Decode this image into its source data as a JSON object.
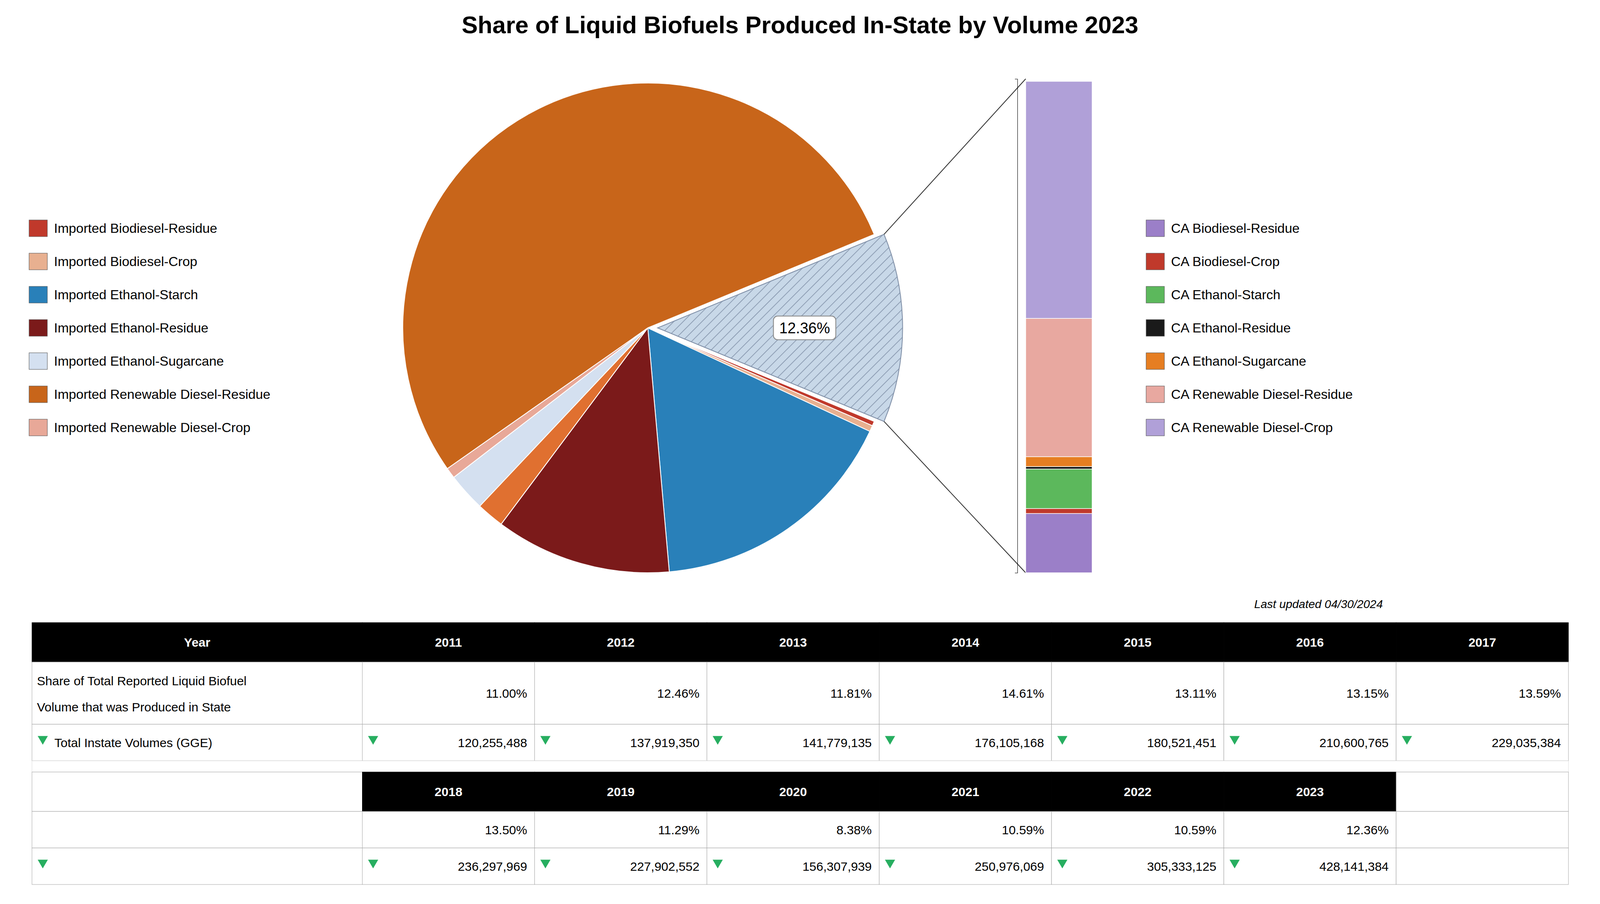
{
  "chart_data": [
    {
      "type": "pie",
      "title": "Share of Liquid Biofuels Produced In-State by Volume 2023",
      "values": [
        0.3,
        0.4,
        16.5,
        11.5,
        1.8,
        2.5,
        0.7,
        53.0,
        12.36
      ],
      "colors": [
        "#c0392b",
        "#e8b090",
        "#2980b9",
        "#7b1a1a",
        "#e07030",
        "#d4e0f0",
        "#e8a898",
        "#c8651a",
        "#c8d8e8"
      ],
      "annotation": "12.36%",
      "legend_entries": [
        {
          "name": "Imported Biodiesel-Residue",
          "color": "#c0392b"
        },
        {
          "name": "Imported Biodiesel-Crop",
          "color": "#e8b090"
        },
        {
          "name": "Imported Ethanol-Starch",
          "color": "#2980b9"
        },
        {
          "name": "Imported Ethanol-Residue",
          "color": "#7b1a1a"
        },
        {
          "name": "Imported Ethanol-Sugarcane",
          "color": "#d4e0f0"
        },
        {
          "name": "Imported Renewable Diesel-Residue",
          "color": "#c8651a"
        },
        {
          "name": "Imported Renewable Diesel-Crop",
          "color": "#e8a898"
        }
      ],
      "footnote": "Last updated 04/30/2024"
    },
    {
      "type": "bar",
      "stacked": true,
      "categories": [
        null
      ],
      "series": [
        {
          "name": "CA Biodiesel-Residue",
          "color": "#9b7fc8",
          "values": [
            12
          ]
        },
        {
          "name": "CA Biodiesel-Crop",
          "color": "#c0392b",
          "values": [
            1
          ]
        },
        {
          "name": "CA Ethanol-Starch",
          "color": "#5cb85c",
          "values": [
            8
          ]
        },
        {
          "name": "CA Ethanol-Residue",
          "color": "#1a1a1a",
          "values": [
            0.5
          ]
        },
        {
          "name": "CA Ethanol-Sugarcane",
          "color": "#e67e22",
          "values": [
            2
          ]
        },
        {
          "name": "CA Renewable Diesel-Residue",
          "color": "#e8a8a0",
          "values": [
            28
          ]
        },
        {
          "name": "CA Renewable Diesel-Crop",
          "color": "#b0a0d8",
          "values": [
            48
          ]
        }
      ],
      "ylim": [
        0,
        100
      ],
      "yticks": [
        0,
        100
      ],
      "tick_labels": false
    },
    {
      "type": "table",
      "columns": [
        "Year",
        "2011",
        "2012",
        "2013",
        "2014",
        "2015",
        "2016",
        "2017"
      ],
      "rows": [
        {
          "label": [
            "Share of Total Reported Liquid Biofuel",
            "Volume that was Produced in State"
          ],
          "values": [
            "11.00%",
            "12.46%",
            "11.81%",
            "14.61%",
            "13.11%",
            "13.15%",
            "13.59%"
          ]
        },
        {
          "label": "Total Instate Volumes (GGE)",
          "values": [
            "120,255,488",
            "137,919,350",
            "141,779,135",
            "176,105,168",
            "180,521,451",
            "210,600,765",
            "229,035,384"
          ],
          "marker": "triangle-down",
          "color": "#27ae60"
        }
      ]
    },
    {
      "type": "table",
      "columns": [
        "2018",
        "2019",
        "2020",
        "2021",
        "2022",
        "2023"
      ],
      "rows": [
        {
          "values": [
            "13.50%",
            "11.29%",
            "8.38%",
            "10.59%",
            "10.59%",
            "12.36%"
          ]
        },
        {
          "values": [
            "236,297,969",
            "227,902,552",
            "156,307,939",
            "250,976,069",
            "305,333,125",
            "428,141,384"
          ],
          "marker": "triangle-down",
          "color": "#27ae60"
        }
      ]
    }
  ]
}
